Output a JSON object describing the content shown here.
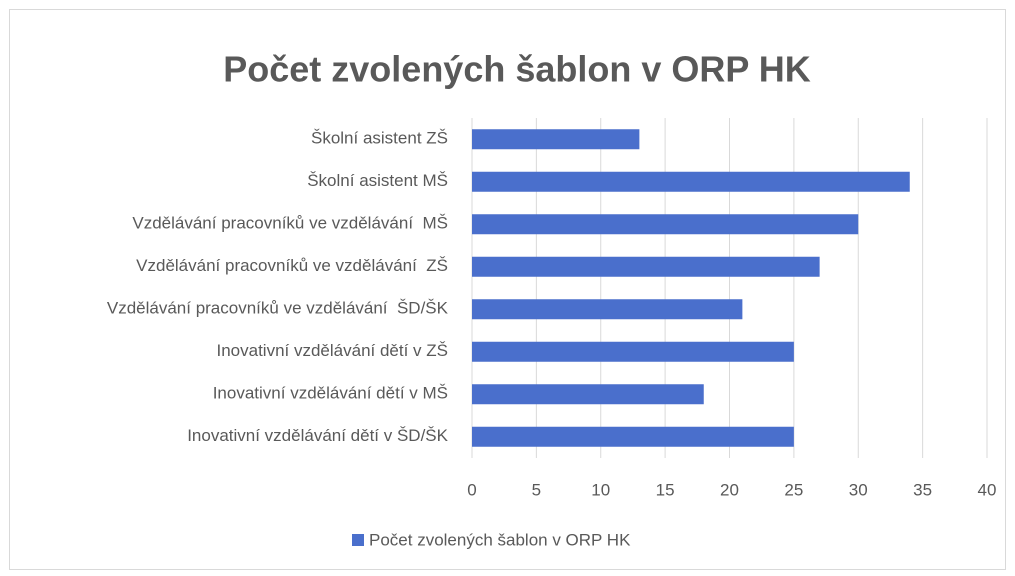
{
  "chart_data": {
    "type": "bar",
    "orientation": "horizontal",
    "title": "Počet zvolených šablon v ORP HK",
    "categories": [
      "Školní asistent ZŠ",
      "Školní asistent MŠ",
      "Vzdělávání pracovníků ve vzdělávání  MŠ",
      "Vzdělávání pracovníků ve vzdělávání  ZŠ",
      "Vzdělávání pracovníků ve vzdělávání  ŠD/ŠK",
      "Inovativní vzdělávání dětí v ZŠ",
      "Inovativní vzdělávání dětí v MŠ",
      "Inovativní vzdělávání dětí v ŠD/ŠK"
    ],
    "series": [
      {
        "name": "Počet zvolených šablon v ORP HK",
        "color": "#4a6fcc",
        "values": [
          13,
          34,
          30,
          27,
          21,
          25,
          18,
          25
        ]
      }
    ],
    "xlim": [
      0,
      40
    ],
    "xticks": [
      0,
      5,
      10,
      15,
      20,
      25,
      30,
      35,
      40
    ],
    "grid": true,
    "legend": "bottom"
  }
}
